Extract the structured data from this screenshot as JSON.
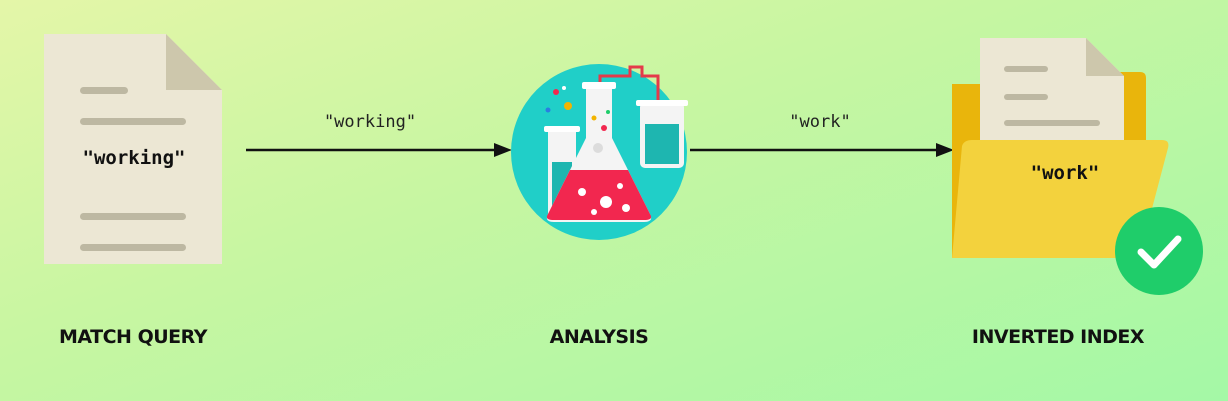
{
  "query_doc": {
    "word": "\"working\"",
    "caption": "MATCH QUERY"
  },
  "analysis": {
    "caption": "ANALYSIS"
  },
  "index": {
    "word": "\"work\"",
    "caption": "INVERTED INDEX"
  },
  "arrows": {
    "first_label": "\"working\"",
    "second_label": "\"work\""
  },
  "icons": {
    "document": "document-icon",
    "flask": "lab-flask-icon",
    "folder": "folder-icon",
    "check": "check-badge-icon"
  },
  "colors": {
    "paper": "#ece7d4",
    "paper_fold": "#cdc7ac",
    "teal_circle": "#20cfc8",
    "liquid_red": "#f2274f",
    "folder_back": "#e9b50c",
    "folder_front": "#f3d23d",
    "check_green": "#1fcd6a"
  }
}
